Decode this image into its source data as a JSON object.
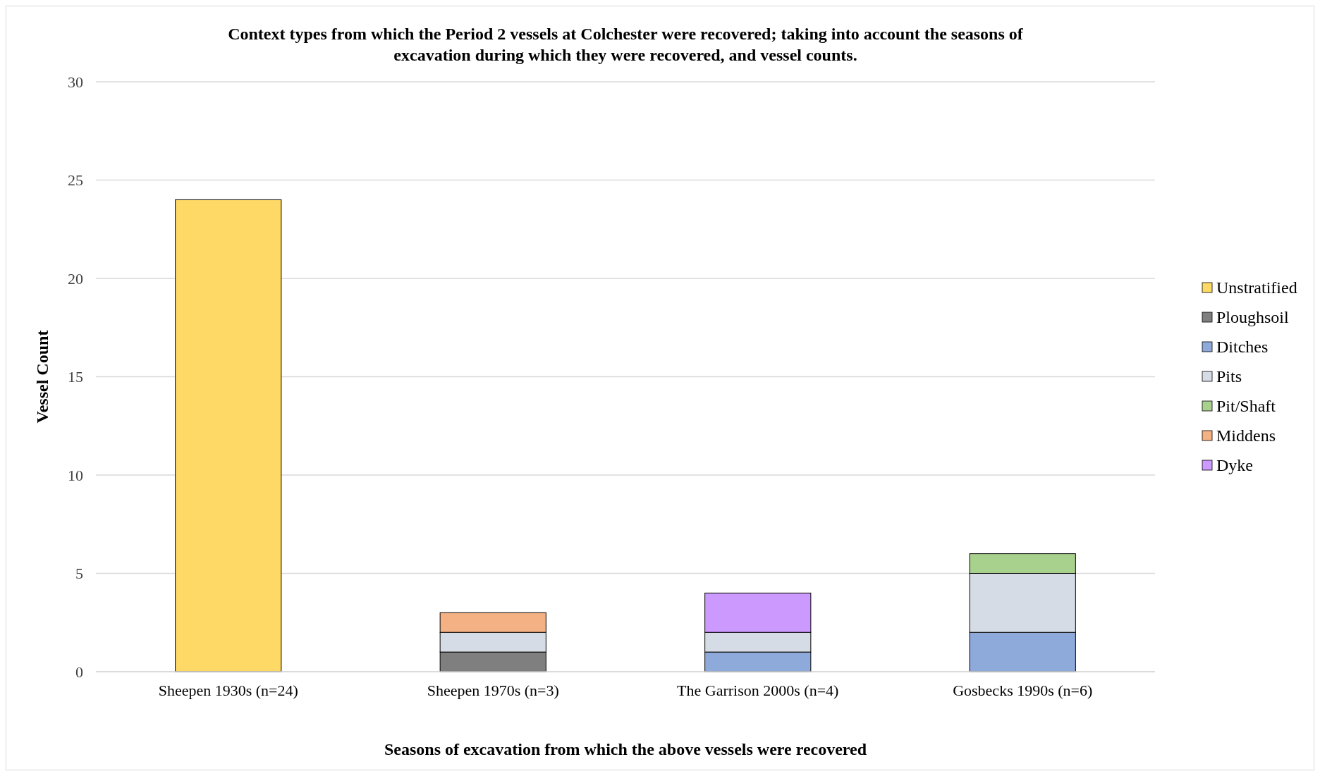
{
  "chart_data": {
    "type": "bar",
    "title": "Context types from which the Period 2 vessels at Colchester were recovered; taking into account the seasons of excavation during which they were recovered, and vessel counts.",
    "xlabel": "Seasons of excavation from which the above vessels were recovered",
    "ylabel": "Vessel Count",
    "categories": [
      "Sheepen 1930s (n=24)",
      "Sheepen 1970s (n=3)",
      "The Garrison 2000s (n=4)",
      "Gosbecks 1990s (n=6)"
    ],
    "stacked": true,
    "ylim": [
      0,
      30
    ],
    "yticks": [
      0,
      5,
      10,
      15,
      20,
      25,
      30
    ],
    "grid": "y",
    "legend": "right",
    "series": [
      {
        "name": "Unstratified",
        "color": "#ffd966",
        "values": [
          24,
          null,
          null,
          null
        ]
      },
      {
        "name": "Ploughsoil",
        "color": "#7f7f7f",
        "values": [
          null,
          1,
          null,
          null
        ]
      },
      {
        "name": "Ditches",
        "color": "#8eaadb",
        "values": [
          null,
          null,
          1,
          2
        ]
      },
      {
        "name": "Pits",
        "color": "#d6dce5",
        "values": [
          null,
          1,
          1,
          3
        ]
      },
      {
        "name": "Pit/Shaft",
        "color": "#a9d18e",
        "values": [
          null,
          null,
          null,
          1
        ]
      },
      {
        "name": "Middens",
        "color": "#f4b183",
        "values": [
          null,
          1,
          null,
          null
        ]
      },
      {
        "name": "Dyke",
        "color": "#cc99ff",
        "values": [
          null,
          null,
          2,
          null
        ]
      }
    ]
  }
}
